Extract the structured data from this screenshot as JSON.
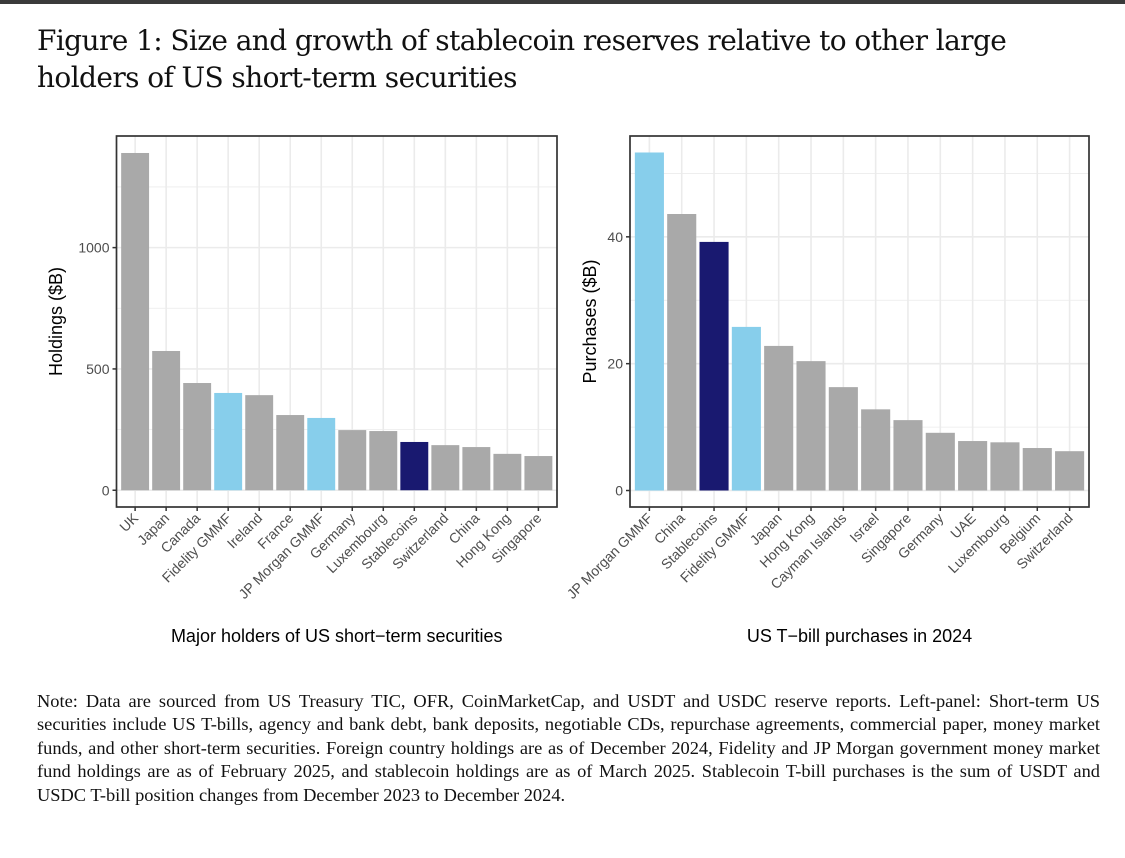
{
  "figure": {
    "title": "Figure 1: Size and growth of stablecoin reserves relative to other large holders of US short-term securities",
    "note": "Note: Data are sourced from US Treasury TIC, OFR, CoinMarketCap, and USDT and USDC reserve reports. Left-panel: Short-term US securities include US T-bills, agency and bank debt, bank deposits, negotiable CDs, repurchase agreements, commercial paper, money market funds, and other short-term securities. Foreign country holdings are as of December 2024, Fidelity and JP Morgan government money market fund holdings are as of February 2025, and stablecoin holdings are as of March 2025. Stablecoin T-bill purchases is the sum of USDT and USDC T-bill position changes from December 2023 to December 2024."
  },
  "colors": {
    "country": "#A9A9A9",
    "money_market_fund": "#87CEEB",
    "stablecoins": "#191970",
    "grid": "#EBEBEB",
    "panel_border": "#333333"
  },
  "chart_data": [
    {
      "type": "bar",
      "title": "",
      "xlabel": "Major holders of US short−term securities",
      "ylabel": "Holdings ($B)",
      "ylim": [
        -69,
        1460
      ],
      "yticks": [
        0,
        500,
        1000
      ],
      "grid": true,
      "legend": "none",
      "categories": [
        "UK",
        "Japan",
        "Canada",
        "Fidelity GMMF",
        "Ireland",
        "France",
        "JP Morgan GMMF",
        "Germany",
        "Luxembourg",
        "Stablecoins",
        "Switzerland",
        "China",
        "Hong Kong",
        "Singapore"
      ],
      "values": [
        1390,
        574,
        442,
        401,
        392,
        310,
        298,
        248,
        244,
        199,
        186,
        178,
        150,
        141
      ],
      "groups": [
        "country",
        "country",
        "country",
        "money_market_fund",
        "country",
        "country",
        "money_market_fund",
        "country",
        "country",
        "stablecoins",
        "country",
        "country",
        "country",
        "country"
      ]
    },
    {
      "type": "bar",
      "title": "",
      "xlabel": "US T−bill purchases in 2024",
      "ylabel": "Purchases ($B)",
      "ylim": [
        -2.6,
        55.9
      ],
      "yticks": [
        0,
        20,
        40
      ],
      "grid": true,
      "legend": "none",
      "categories": [
        "JP Morgan GMMF",
        "China",
        "Stablecoins",
        "Fidelity GMMF",
        "Japan",
        "Hong Kong",
        "Cayman Islands",
        "Israel",
        "Singapore",
        "Germany",
        "UAE",
        "Luxembourg",
        "Belgium",
        "Switzerland"
      ],
      "values": [
        53.3,
        43.6,
        39.2,
        25.8,
        22.8,
        20.4,
        16.3,
        12.8,
        11.1,
        9.1,
        7.8,
        7.6,
        6.7,
        6.2
      ],
      "groups": [
        "money_market_fund",
        "country",
        "stablecoins",
        "money_market_fund",
        "country",
        "country",
        "country",
        "country",
        "country",
        "country",
        "country",
        "country",
        "country",
        "country"
      ]
    }
  ]
}
